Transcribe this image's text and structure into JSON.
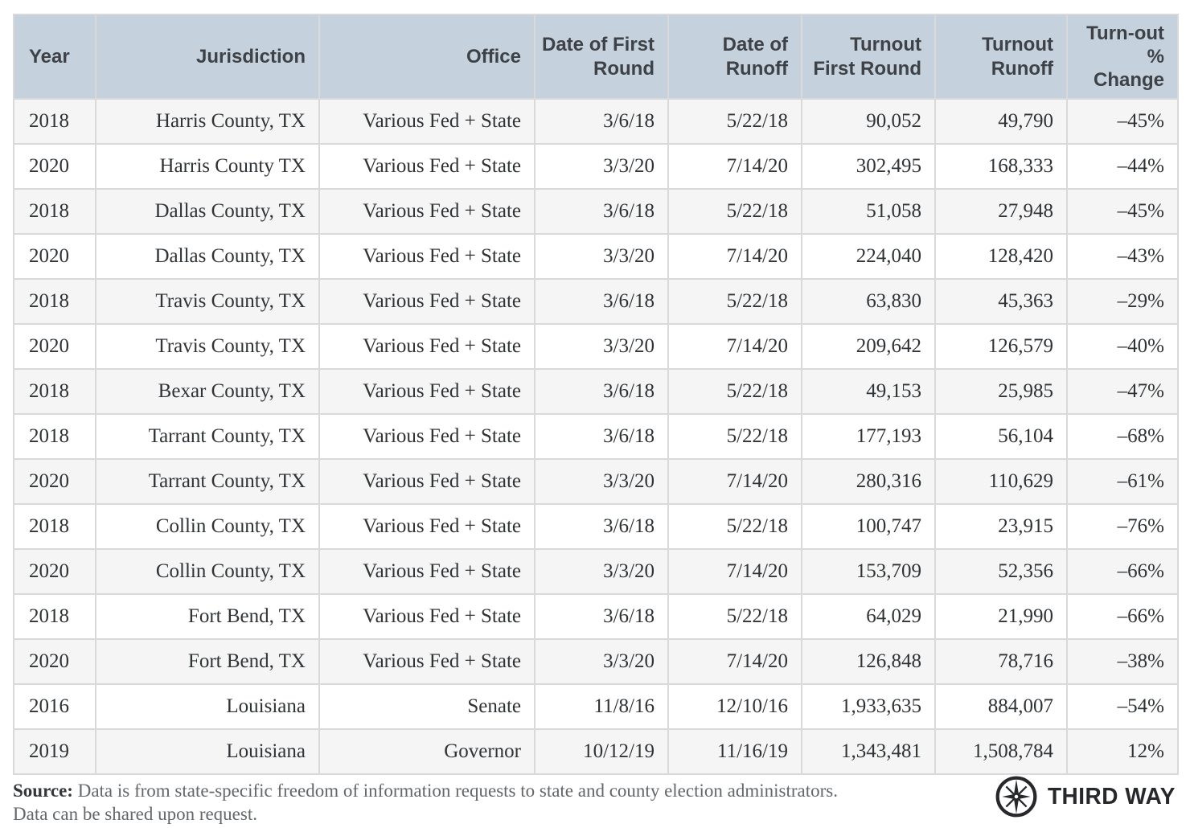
{
  "chart_data": {
    "type": "table",
    "columns": [
      {
        "key": "year",
        "label": "Year",
        "align": "left"
      },
      {
        "key": "jurisdiction",
        "label": "Jurisdiction",
        "align": "right"
      },
      {
        "key": "office",
        "label": "Office",
        "align": "right"
      },
      {
        "key": "date_first_round",
        "label": "Date of First Round",
        "align": "right"
      },
      {
        "key": "date_runoff",
        "label": "Date of Runoff",
        "align": "right"
      },
      {
        "key": "turnout_first_round",
        "label": "Turnout First Round",
        "align": "right"
      },
      {
        "key": "turnout_runoff",
        "label": "Turnout Runoff",
        "align": "right"
      },
      {
        "key": "turnout_pct_change",
        "label": "Turn-out % Change",
        "align": "right"
      }
    ],
    "rows": [
      [
        "2018",
        "Harris County, TX",
        "Various Fed + State",
        "3/6/18",
        "5/22/18",
        "90,052",
        "49,790",
        "–45%"
      ],
      [
        "2020",
        "Harris County TX",
        "Various Fed + State",
        "3/3/20",
        "7/14/20",
        "302,495",
        "168,333",
        "–44%"
      ],
      [
        "2018",
        "Dallas County, TX",
        "Various Fed + State",
        "3/6/18",
        "5/22/18",
        "51,058",
        "27,948",
        "–45%"
      ],
      [
        "2020",
        "Dallas County, TX",
        "Various Fed + State",
        "3/3/20",
        "7/14/20",
        "224,040",
        "128,420",
        "–43%"
      ],
      [
        "2018",
        "Travis County, TX",
        "Various Fed + State",
        "3/6/18",
        "5/22/18",
        "63,830",
        "45,363",
        "–29%"
      ],
      [
        "2020",
        "Travis County, TX",
        "Various Fed + State",
        "3/3/20",
        "7/14/20",
        "209,642",
        "126,579",
        "–40%"
      ],
      [
        "2018",
        "Bexar County, TX",
        "Various Fed + State",
        "3/6/18",
        "5/22/18",
        "49,153",
        "25,985",
        "–47%"
      ],
      [
        "2018",
        "Tarrant County, TX",
        "Various Fed + State",
        "3/6/18",
        "5/22/18",
        "177,193",
        "56,104",
        "–68%"
      ],
      [
        "2020",
        "Tarrant County, TX",
        "Various Fed + State",
        "3/3/20",
        "7/14/20",
        "280,316",
        "110,629",
        "–61%"
      ],
      [
        "2018",
        "Collin County, TX",
        "Various Fed + State",
        "3/6/18",
        "5/22/18",
        "100,747",
        "23,915",
        "–76%"
      ],
      [
        "2020",
        "Collin County, TX",
        "Various Fed + State",
        "3/3/20",
        "7/14/20",
        "153,709",
        "52,356",
        "–66%"
      ],
      [
        "2018",
        "Fort Bend, TX",
        "Various Fed + State",
        "3/6/18",
        "5/22/18",
        "64,029",
        "21,990",
        "–66%"
      ],
      [
        "2020",
        "Fort Bend, TX",
        "Various Fed + State",
        "3/3/20",
        "7/14/20",
        "126,848",
        "78,716",
        "–38%"
      ],
      [
        "2016",
        "Louisiana",
        "Senate",
        "11/8/16",
        "12/10/16",
        "1,933,635",
        "884,007",
        "–54%"
      ],
      [
        "2019",
        "Louisiana",
        "Governor",
        "10/12/19",
        "11/16/19",
        "1,343,481",
        "1,508,784",
        "12%"
      ]
    ]
  },
  "footer": {
    "source_label": "Source:",
    "source_line1": "Data is from state-specific freedom of information requests to state and county election administrators.",
    "source_line2": "Data can be shared upon request.",
    "brand": "THIRD WAY"
  },
  "colors": {
    "header_bg": "#c5d1dd",
    "header_text": "#3e4247",
    "body_text": "#2f3336",
    "row_alt_bg": "#f5f5f5",
    "row_bg": "#ffffff",
    "border": "#d9d9d9",
    "footnote_text": "#63676a",
    "brand_dark": "#26282b"
  }
}
